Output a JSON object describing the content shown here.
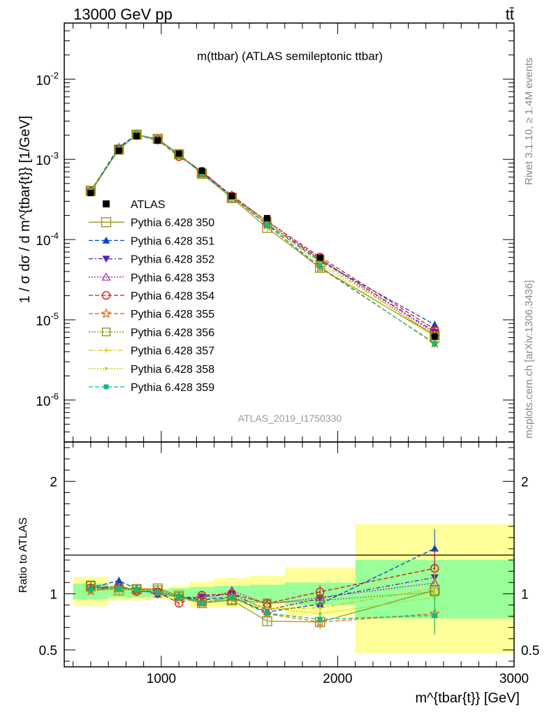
{
  "header": {
    "left": "13000 GeV pp",
    "right": "tt̄"
  },
  "side": {
    "rivet": "Rivet 3.1.10, ≥ 1.4M events",
    "mcplots": "mcplots.cern.ch [arXiv:1306.3436]"
  },
  "chart_data": [
    {
      "type": "line",
      "title": "m(ttbar) (ATLAS semileptonic ttbar)",
      "ylabel": "1 / σ dσ / d m^{tbar{t}} [1/GeV]",
      "yscale": "log",
      "ylim": [
        3e-07,
        0.05
      ],
      "xlim": [
        450,
        3000
      ],
      "yticks": [
        {
          "v": 0.01,
          "label": "10^-2"
        },
        {
          "v": 0.001,
          "label": "10^-3"
        },
        {
          "v": 0.0001,
          "label": "10^-4"
        },
        {
          "v": 1e-05,
          "label": "10^-5"
        },
        {
          "v": 1e-06,
          "label": "10^-6"
        }
      ],
      "watermark": "ATLAS_2019_I1750330",
      "legend_position": "left",
      "x": [
        600,
        760,
        860,
        980,
        1100,
        1230,
        1400,
        1600,
        1900,
        2550
      ],
      "data": {
        "name": "ATLAS",
        "values": [
          0.00038,
          0.00128,
          0.00195,
          0.00172,
          0.00118,
          0.00072,
          0.00035,
          0.000185,
          5.95e-05,
          6.2e-06
        ]
      },
      "series": [
        {
          "name": "Pythia 6.428 350",
          "color": "#999922",
          "marker": "square-open",
          "dash": "",
          "values": [
            0.000405,
            0.00132,
            0.00203,
            0.0018,
            0.00116,
            0.00066,
            0.00033,
            0.00014,
            4.45e-05,
            6.4e-06
          ]
        },
        {
          "name": "Pythia 6.428 351",
          "color": "#0044cc",
          "marker": "triangle-up",
          "dash": "6,3",
          "values": [
            0.0004,
            0.00143,
            0.00203,
            0.00171,
            0.00115,
            0.00068,
            0.00034,
            0.000155,
            5.4e-05,
            8.7e-06
          ]
        },
        {
          "name": "Pythia 6.428 352",
          "color": "#5522bb",
          "marker": "triangle-down",
          "dash": "6,3,2,3",
          "values": [
            0.00039,
            0.00137,
            0.002,
            0.00175,
            0.00114,
            0.0007,
            0.00035,
            0.000158,
            5.7e-05,
            7.1e-06
          ]
        },
        {
          "name": "Pythia 6.428 353",
          "color": "#aa22aa",
          "marker": "triangle-open",
          "dash": "2,2",
          "values": [
            0.0004,
            0.00136,
            0.00202,
            0.00176,
            0.00114,
            0.00067,
            0.00036,
            0.000168,
            5.75e-05,
            6.8e-06
          ]
        },
        {
          "name": "Pythia 6.428 354",
          "color": "#dd1111",
          "marker": "circle-open",
          "dash": "6,3",
          "values": [
            0.0004,
            0.00136,
            0.00199,
            0.00175,
            0.00108,
            0.00071,
            0.00035,
            0.000169,
            6.05e-05,
            7.6e-06
          ]
        },
        {
          "name": "Pythia 6.428 355",
          "color": "#ee6611",
          "marker": "star-open",
          "dash": "6,3",
          "values": [
            0.00039,
            0.00134,
            0.00203,
            0.00174,
            0.00115,
            0.00066,
            0.00034,
            0.000152,
            4.45e-05,
            5.1e-06
          ]
        },
        {
          "name": "Pythia 6.428 356",
          "color": "#778800",
          "marker": "square-open-small",
          "dash": "2,2",
          "values": [
            0.00041,
            0.00135,
            0.00203,
            0.00178,
            0.00115,
            0.00067,
            0.00033,
            0.00017,
            5.6e-05,
            6.3e-06
          ]
        },
        {
          "name": "Pythia 6.428 357",
          "color": "#ddbb00",
          "marker": "plus",
          "dash": "6,3,2,3",
          "values": [
            0.00039,
            0.00133,
            0.00201,
            0.00175,
            0.00113,
            0.00066,
            0.00034,
            0.00016,
            5.2e-05,
            6.5e-06
          ]
        },
        {
          "name": "Pythia 6.428 358",
          "color": "#bbcc22",
          "marker": "dot",
          "dash": "2,2",
          "values": [
            0.00039,
            0.00134,
            0.00201,
            0.00175,
            0.00114,
            0.00066,
            0.00034,
            0.000162,
            4.9e-05,
            6e-06
          ]
        },
        {
          "name": "Pythia 6.428 359",
          "color": "#11bb77",
          "marker": "square",
          "dash": "6,3",
          "values": [
            0.000395,
            0.00134,
            0.00203,
            0.00175,
            0.00115,
            0.00066,
            0.00034,
            0.000153,
            4.6e-05,
            5e-06
          ]
        }
      ]
    },
    {
      "type": "line",
      "ylabel": "Ratio to ATLAS",
      "xlabel": "m^{tbar{t}} [GeV]",
      "ylim": [
        0.35,
        2.35
      ],
      "xlim": [
        450,
        3000
      ],
      "xticks": [
        1000,
        2000,
        3000
      ],
      "yticks": [
        0.5,
        1,
        2
      ],
      "bins": [
        {
          "lo": 500,
          "hi": 700,
          "green": [
            0.95,
            1.09
          ],
          "yellow": [
            0.89,
            1.15
          ]
        },
        {
          "lo": 700,
          "hi": 820,
          "green": [
            0.97,
            1.05
          ],
          "yellow": [
            0.94,
            1.07
          ]
        },
        {
          "lo": 820,
          "hi": 920,
          "green": [
            0.97,
            1.04
          ],
          "yellow": [
            0.94,
            1.06
          ]
        },
        {
          "lo": 920,
          "hi": 1050,
          "green": [
            0.97,
            1.04
          ],
          "yellow": [
            0.95,
            1.05
          ]
        },
        {
          "lo": 1050,
          "hi": 1160,
          "green": [
            0.97,
            1.05
          ],
          "yellow": [
            0.95,
            1.07
          ]
        },
        {
          "lo": 1160,
          "hi": 1300,
          "green": [
            0.95,
            1.06
          ],
          "yellow": [
            0.88,
            1.11
          ]
        },
        {
          "lo": 1300,
          "hi": 1500,
          "green": [
            0.94,
            1.07
          ],
          "yellow": [
            0.88,
            1.14
          ]
        },
        {
          "lo": 1500,
          "hi": 1700,
          "green": [
            0.92,
            1.08
          ],
          "yellow": [
            0.86,
            1.16
          ]
        },
        {
          "lo": 1700,
          "hi": 2100,
          "green": [
            0.9,
            1.1
          ],
          "yellow": [
            0.8,
            1.23
          ]
        },
        {
          "lo": 2100,
          "hi": 3000,
          "green": [
            0.78,
            1.3
          ],
          "yellow": [
            0.47,
            1.62
          ]
        }
      ]
    }
  ]
}
